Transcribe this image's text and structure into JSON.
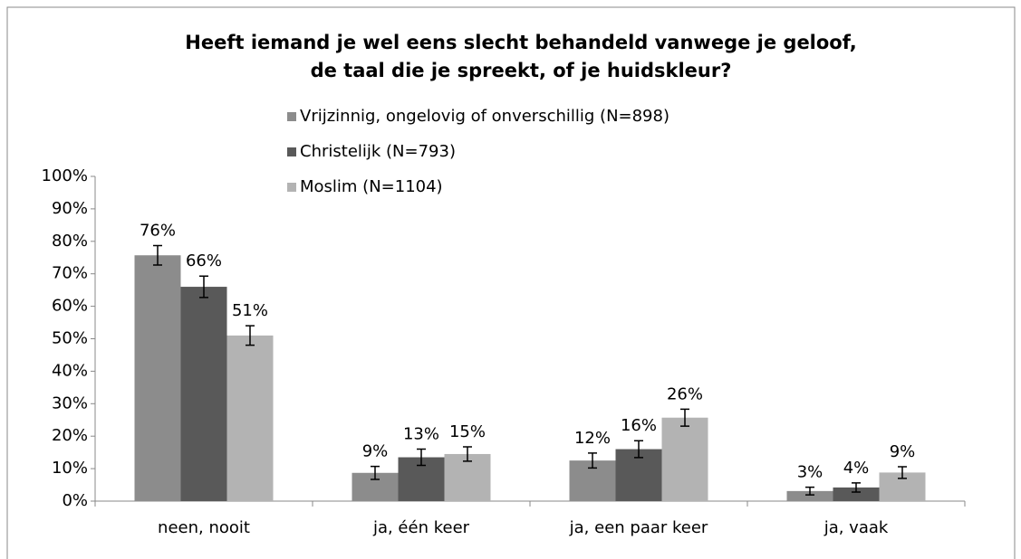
{
  "chart_data": {
    "type": "bar",
    "title": [
      "Heeft iemand je wel eens slecht behandeld vanwege je geloof,",
      "de taal die je spreekt, of je huidskleur?"
    ],
    "categories": [
      "neen, nooit",
      "ja, één keer",
      "ja, een paar keer",
      "ja, vaak"
    ],
    "series": [
      {
        "name": "Vrijzinnig, ongelovig of onverschillig (N=898)",
        "color": "#8c8c8c",
        "values": [
          75.7,
          8.7,
          12.5,
          3.1
        ],
        "errors": [
          3.0,
          2.0,
          2.3,
          1.2
        ],
        "value_labels": [
          "76%",
          "9%",
          "12%",
          "3%"
        ]
      },
      {
        "name": "Christelijk (N=793)",
        "color": "#595959",
        "values": [
          66,
          13.5,
          16,
          4.2
        ],
        "errors": [
          3.3,
          2.5,
          2.6,
          1.4
        ],
        "value_labels": [
          "66%",
          "13%",
          "16%",
          "4%"
        ]
      },
      {
        "name": "Moslim (N=1104)",
        "color": "#b3b3b3",
        "values": [
          51,
          14.5,
          25.7,
          8.8
        ],
        "errors": [
          3.0,
          2.2,
          2.6,
          1.8
        ],
        "value_labels": [
          "51%",
          "15%",
          "26%",
          "9%"
        ]
      }
    ],
    "ylim": [
      0,
      100
    ],
    "yticks": [
      {
        "value": 0,
        "label": "0%"
      },
      {
        "value": 10,
        "label": "10%"
      },
      {
        "value": 20,
        "label": "20%"
      },
      {
        "value": 30,
        "label": "30%"
      },
      {
        "value": 40,
        "label": "40%"
      },
      {
        "value": 50,
        "label": "50%"
      },
      {
        "value": 60,
        "label": "60%"
      },
      {
        "value": 70,
        "label": "70%"
      },
      {
        "value": 80,
        "label": "80%"
      },
      {
        "value": 90,
        "label": "90%"
      },
      {
        "value": 100,
        "label": "100%"
      }
    ],
    "grid": false
  }
}
